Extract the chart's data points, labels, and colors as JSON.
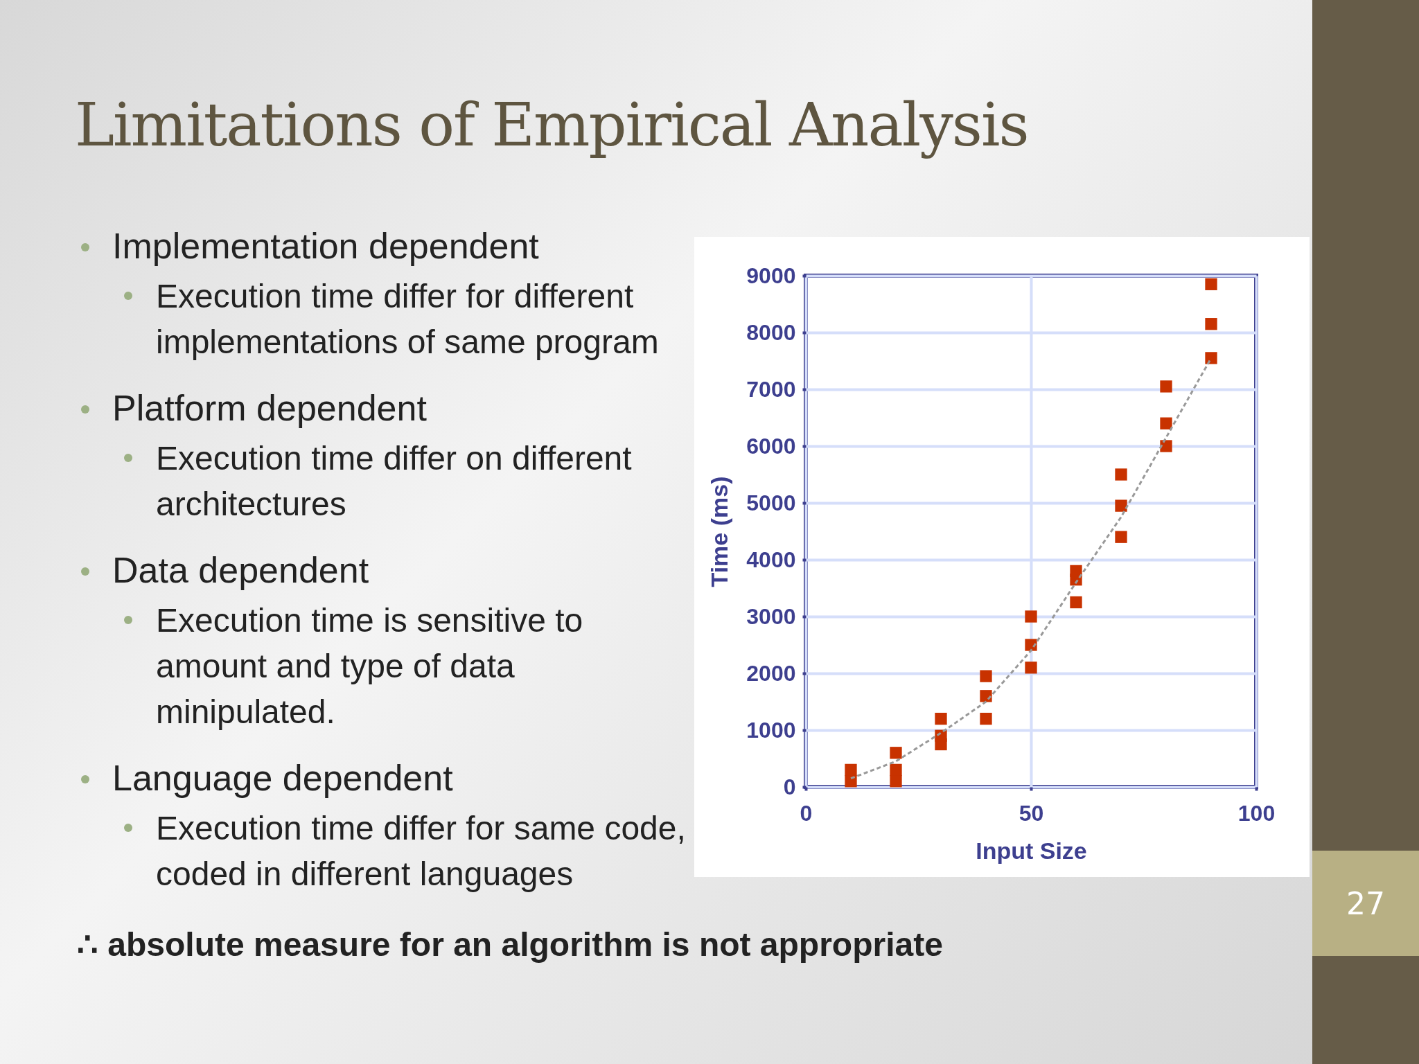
{
  "chart_data": {
    "type": "scatter",
    "title": "Limitations of Empirical Analysis",
    "xlabel": "Input Size",
    "ylabel": "Time (ms)",
    "xlim": [
      0,
      100
    ],
    "xticks": [
      0,
      50,
      100
    ],
    "ylim": [
      0,
      9000
    ],
    "yticks": [
      0,
      1000,
      2000,
      3000,
      4000,
      5000,
      6000,
      7000,
      8000,
      9000
    ],
    "grid": true,
    "series": [
      {
        "color": "#c83200",
        "marker": "square",
        "x": [
          10,
          10,
          20,
          20,
          20,
          30,
          30,
          30,
          40,
          40,
          40,
          50,
          50,
          50,
          60,
          60,
          60,
          70,
          70,
          70,
          80,
          80,
          80,
          90,
          90,
          90
        ],
        "values": [
          300,
          100,
          600,
          300,
          100,
          1200,
          900,
          750,
          1950,
          1600,
          1200,
          3000,
          2500,
          2100,
          3800,
          3650,
          3250,
          5500,
          4950,
          4400,
          7050,
          6400,
          6000,
          8850,
          8150,
          7550
        ]
      },
      {
        "type": "line",
        "color": "#999999",
        "line_style": "dashed",
        "x": [
          10,
          20,
          30,
          40,
          50,
          60,
          70,
          80,
          90
        ],
        "values": [
          150,
          450,
          950,
          1500,
          2400,
          3600,
          4750,
          6150,
          7550
        ]
      }
    ],
    "annotations": [
      "Implementation dependent",
      "Execution time differ for different implementations of same program",
      "Platform dependent",
      "Execution time differ on different architectures",
      "Data dependent",
      "Execution time is sensitive to amount and type of data minipulated.",
      "Language dependent",
      "Execution time differ for same code, coded in different languages",
      "∴  absolute measure for an algorithm is not appropriate",
      "27"
    ]
  }
}
